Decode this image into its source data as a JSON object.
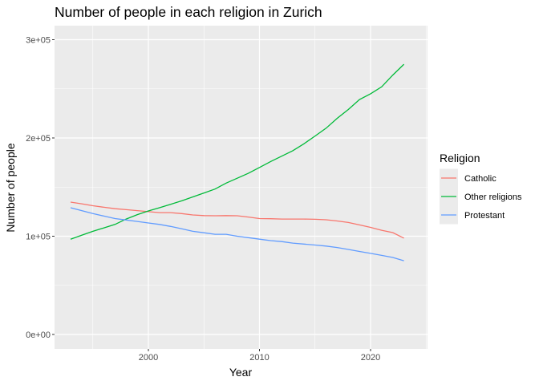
{
  "chart_data": {
    "type": "line",
    "title": "Number of people in each religion in Zurich",
    "xlabel": "Year",
    "ylabel": "Number of people",
    "xlim": [
      1991.5,
      2025
    ],
    "ylim": [
      -15000,
      310000
    ],
    "x_ticks": [
      2000,
      2010,
      2020
    ],
    "x_tick_labels": [
      "2000",
      "2010",
      "2020"
    ],
    "y_ticks": [
      0,
      100000,
      200000,
      300000
    ],
    "y_tick_labels": [
      "0e+00",
      "1e+05",
      "2e+05",
      "3e+05"
    ],
    "grid": true,
    "legend": {
      "title": "Religion",
      "placement": "right"
    },
    "x": [
      1993,
      1994,
      1995,
      1996,
      1997,
      1998,
      1999,
      2000,
      2001,
      2002,
      2003,
      2004,
      2005,
      2006,
      2007,
      2008,
      2009,
      2010,
      2011,
      2012,
      2013,
      2014,
      2015,
      2016,
      2017,
      2018,
      2019,
      2020,
      2021,
      2022,
      2023
    ],
    "series": [
      {
        "name": "Catholic",
        "color": "#F8766D",
        "values": [
          134700,
          133000,
          131000,
          129500,
          128000,
          127000,
          126000,
          125000,
          124000,
          124000,
          123000,
          121600,
          121000,
          120800,
          121000,
          120800,
          119500,
          118000,
          117800,
          117500,
          117500,
          117500,
          117200,
          116700,
          115500,
          114000,
          111500,
          109000,
          106000,
          103700,
          98000
        ]
      },
      {
        "name": "Other religions",
        "color": "#00BA38",
        "values": [
          97000,
          101000,
          105000,
          108500,
          112000,
          117500,
          122000,
          125700,
          129000,
          132500,
          136000,
          140000,
          144000,
          148000,
          154000,
          159000,
          164000,
          170000,
          176000,
          181500,
          187000,
          194000,
          202000,
          210000,
          220000,
          229000,
          239000,
          245000,
          252000,
          264000,
          275000
        ]
      },
      {
        "name": "Protestant",
        "color": "#619CFF",
        "values": [
          129000,
          126000,
          123000,
          120500,
          118000,
          116500,
          115000,
          113500,
          112000,
          110000,
          107500,
          105000,
          103500,
          102000,
          102000,
          100000,
          98500,
          97000,
          95500,
          94500,
          93000,
          92000,
          91000,
          90000,
          88500,
          86500,
          84500,
          82500,
          80500,
          78400,
          75000
        ]
      }
    ]
  }
}
